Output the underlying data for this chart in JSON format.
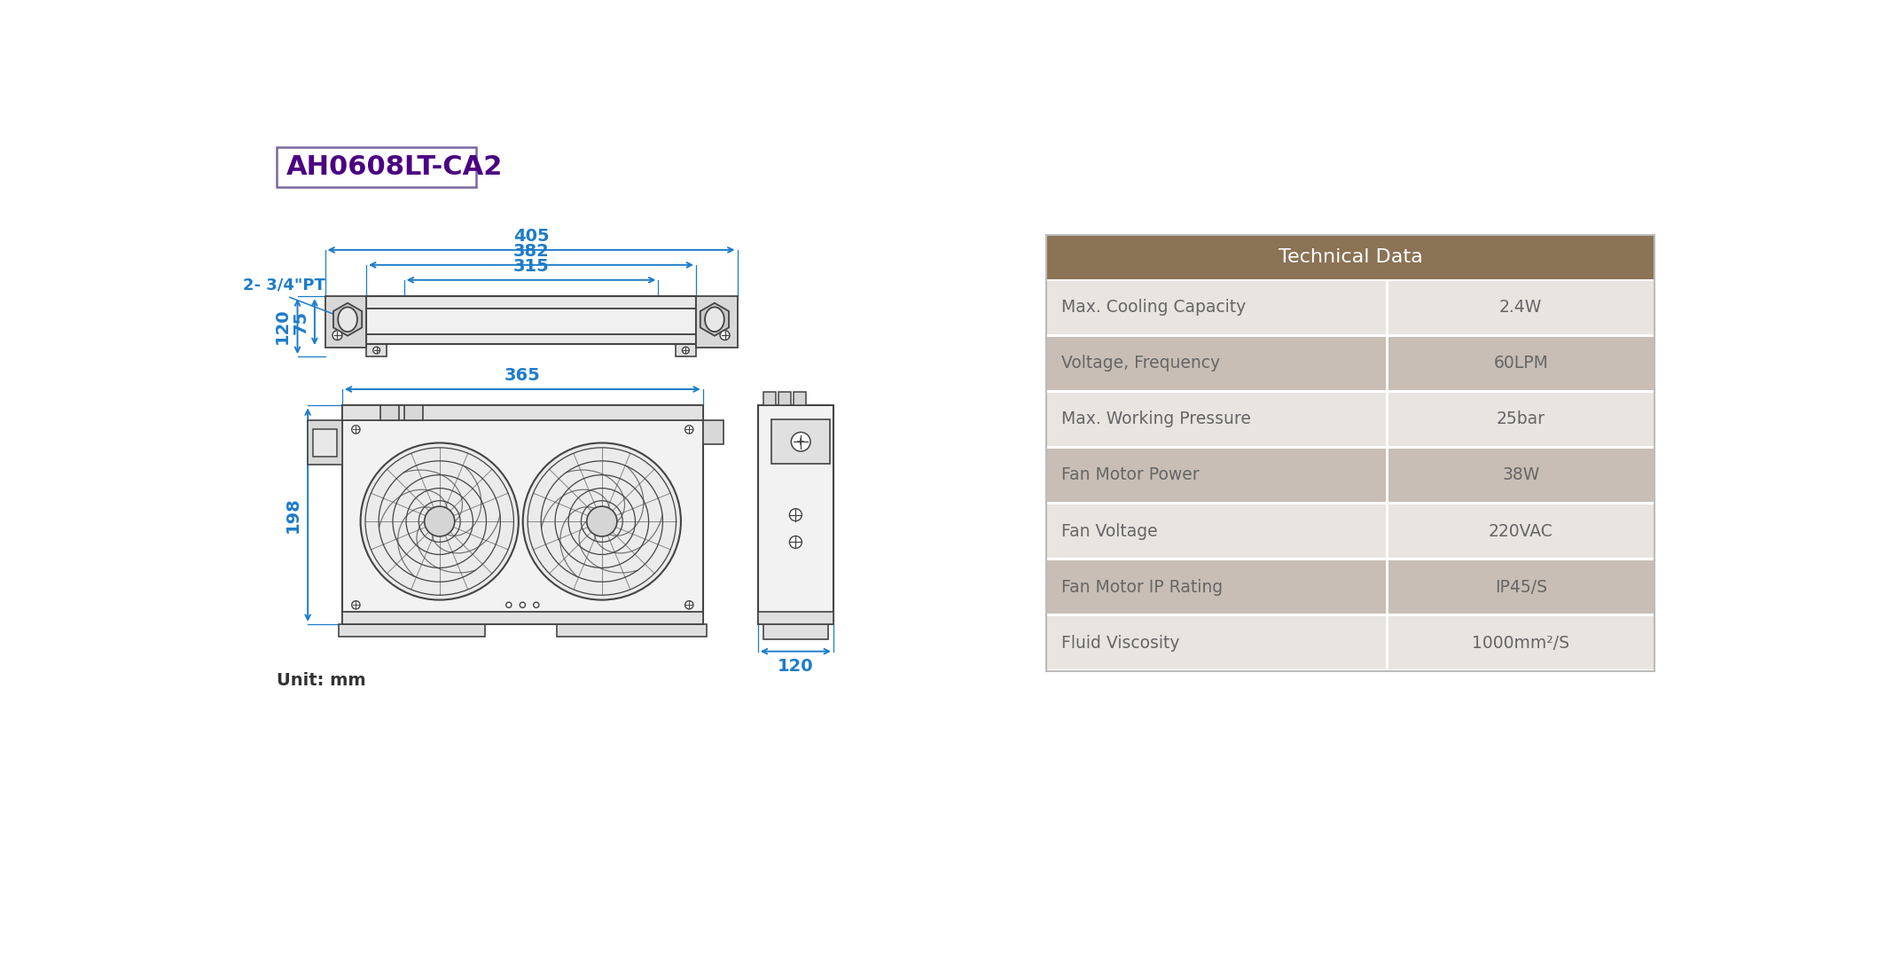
{
  "title": "AH0608LT-CA2",
  "title_color": "#4B0082",
  "title_box_color": "#7B68A0",
  "dim_color": "#1E7CC8",
  "drawing_color": "#444444",
  "unit_text": "Unit: mm",
  "label_pt": "2- 3/4\"PT",
  "table_header": "Technical Data",
  "table_header_bg": "#8B7355",
  "table_header_color": "#FFFFFF",
  "table_row_bg_light": "#E8E4E0",
  "table_row_bg_dark": "#C8BEB5",
  "table_text_color": "#666666",
  "table_rows": [
    [
      "Max. Cooling Capacity",
      "2.4W"
    ],
    [
      "Voltage, Frequency",
      "60LPM"
    ],
    [
      "Max. Working Pressure",
      "25bar"
    ],
    [
      "Fan Motor Power",
      "38W"
    ],
    [
      "Fan Voltage",
      "220VAC"
    ],
    [
      "Fan Motor IP Rating",
      "IP45/S"
    ],
    [
      "Fluid Viscosity",
      "1000mm²/S"
    ]
  ]
}
